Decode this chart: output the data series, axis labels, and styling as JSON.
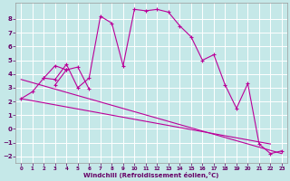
{
  "xlabel": "Windchill (Refroidissement éolien,°C)",
  "background_color": "#c5e8e8",
  "line_color": "#bb0099",
  "xlim": [
    -0.5,
    23.5
  ],
  "ylim": [
    -2.5,
    9.2
  ],
  "yticks": [
    -2,
    -1,
    0,
    1,
    2,
    3,
    4,
    5,
    6,
    7,
    8
  ],
  "xticks": [
    0,
    1,
    2,
    3,
    4,
    5,
    6,
    7,
    8,
    9,
    10,
    11,
    12,
    13,
    14,
    15,
    16,
    17,
    18,
    19,
    20,
    21,
    22,
    23
  ],
  "series1_x": [
    0,
    1,
    2,
    3,
    4,
    5,
    6,
    7,
    8,
    9,
    10,
    11,
    12,
    13,
    14,
    15,
    16,
    17,
    18,
    19,
    20,
    21,
    22,
    23
  ],
  "series1_y": [
    2.2,
    2.7,
    3.7,
    3.6,
    4.7,
    3.0,
    3.7,
    8.2,
    7.7,
    4.6,
    8.7,
    8.6,
    8.7,
    8.5,
    7.5,
    6.7,
    5.0,
    5.4,
    3.2,
    1.5,
    3.3,
    -1.1,
    -1.8,
    -1.6
  ],
  "series2_x": [
    2,
    3,
    4,
    5,
    6
  ],
  "series2_y": [
    3.7,
    4.6,
    4.3,
    4.5,
    2.9
  ],
  "series3_x": [
    3,
    4
  ],
  "series3_y": [
    3.2,
    4.3
  ],
  "trendline1_x": [
    0,
    22
  ],
  "trendline1_y": [
    2.2,
    -1.1
  ],
  "trendline2_x": [
    0,
    23
  ],
  "trendline2_y": [
    3.6,
    -1.8
  ]
}
